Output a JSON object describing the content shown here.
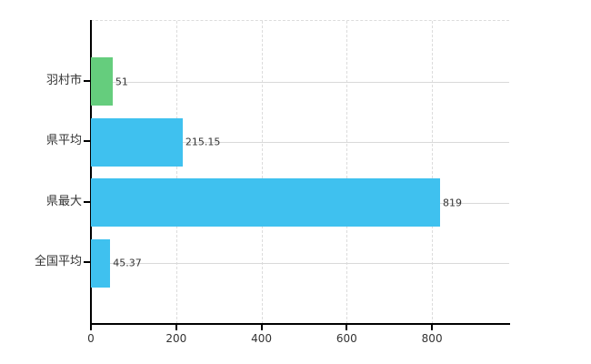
{
  "chart_data": {
    "type": "bar",
    "orientation": "horizontal",
    "title": "",
    "xlabel": "",
    "ylabel": "",
    "categories": [
      "羽村市",
      "県平均",
      "県最大",
      "全国平均"
    ],
    "values": [
      51,
      215.15,
      819,
      45.37
    ],
    "value_labels": [
      "51",
      "215.15",
      "819",
      "45.37"
    ],
    "bar_colors": [
      "#65cd7d",
      "#3fc1ef",
      "#3fc1ef",
      "#3fc1ef"
    ],
    "x_ticks": [
      0,
      200,
      400,
      600,
      800
    ],
    "x_tick_labels": [
      "0",
      "200",
      "400",
      "600",
      "800"
    ],
    "xlim": [
      0,
      981
    ],
    "grid": true,
    "grid_style": "vertical-dashed-horizontal-solid",
    "legend": "none"
  },
  "colors": {
    "background": "#ffffff",
    "axis": "#000000",
    "grid": "#dcdcdc",
    "text": "#333333",
    "bar_green": "#65cd7d",
    "bar_blue": "#3fc1ef"
  }
}
